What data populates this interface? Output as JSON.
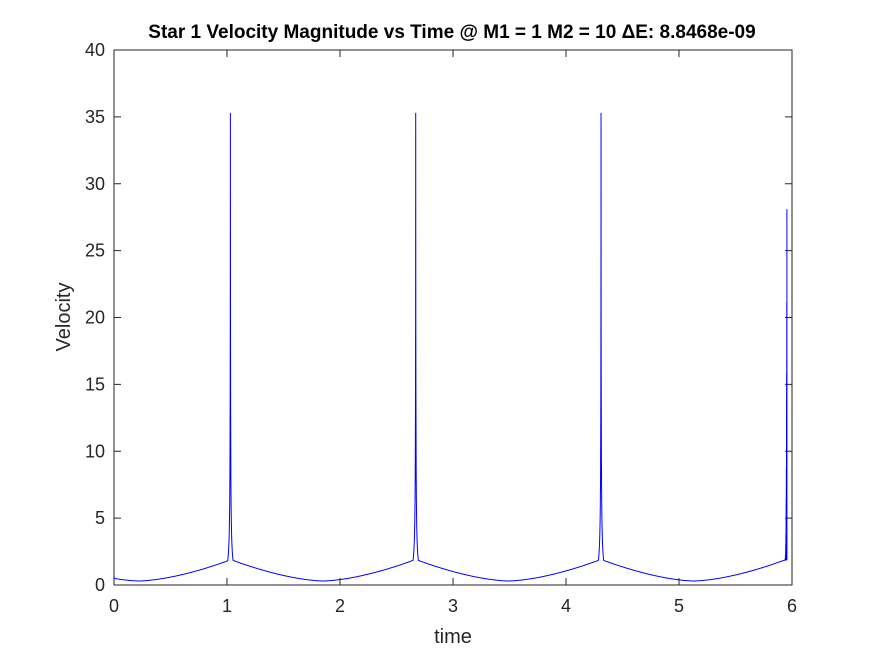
{
  "chart_data": {
    "type": "line",
    "title": "Star 1 Velocity Magnitude vs Time @ M1 = 1 M2 = 10 ΔE: 8.8468e-09",
    "xlabel": "time",
    "ylabel": "Velocity",
    "xlim": [
      0,
      6
    ],
    "ylim": [
      0,
      40
    ],
    "xticks": [
      "0",
      "1",
      "2",
      "3",
      "4",
      "5",
      "6"
    ],
    "yticks": [
      "0",
      "5",
      "10",
      "15",
      "20",
      "25",
      "30",
      "35",
      "40"
    ],
    "grid": false,
    "legend": "none",
    "series": [
      {
        "color": "#0000ff",
        "periastron_times": [
          1.03,
          2.67,
          4.31
        ],
        "apastron_times": [
          0.22,
          1.85,
          3.49,
          5.13
        ],
        "peak_velocity": 35.3,
        "min_velocity": 0.3,
        "x_end": 5.955,
        "y_end": 28.1,
        "x_start": 0,
        "y_start": 0.75
      }
    ]
  }
}
